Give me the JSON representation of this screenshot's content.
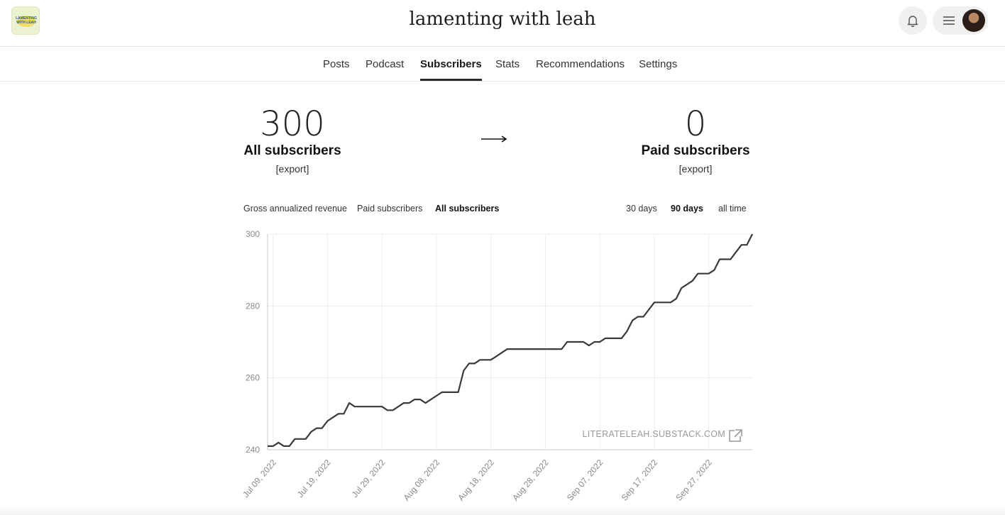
{
  "header": {
    "site_title": "lamenting with leah",
    "logo_text": "LAMENTING WITH LEAH"
  },
  "tabs": [
    {
      "label": "Posts",
      "active": false
    },
    {
      "label": "Podcast",
      "active": false
    },
    {
      "label": "Subscribers",
      "active": true
    },
    {
      "label": "Stats",
      "active": false
    },
    {
      "label": "Recommendations",
      "active": false
    },
    {
      "label": "Settings",
      "active": false
    }
  ],
  "summary": {
    "all": {
      "count": "300",
      "label": "All subscribers",
      "export": "[export]"
    },
    "paid": {
      "count": "0",
      "label": "Paid subscribers",
      "export": "[export]"
    }
  },
  "metric_toggles": [
    {
      "label": "Gross annualized revenue",
      "active": false
    },
    {
      "label": "Paid subscribers",
      "active": false
    },
    {
      "label": "All subscribers",
      "active": true
    }
  ],
  "range_toggles": [
    {
      "label": "30 days",
      "active": false
    },
    {
      "label": "90 days",
      "active": true
    },
    {
      "label": "all time",
      "active": false
    }
  ],
  "chart_link": "LITERATELEAH.SUBSTACK.COM",
  "colors": {
    "line": "#3a3a3a",
    "grid": "#ececec",
    "axis": "#c8c8c8",
    "tick": "#888888"
  },
  "chart_data": {
    "type": "line",
    "series": [
      {
        "values": [
          241,
          241,
          242,
          241,
          241,
          243,
          243,
          243,
          245,
          246,
          246,
          248,
          249,
          250,
          250,
          253,
          252,
          252,
          252,
          252,
          252,
          252,
          251,
          251,
          252,
          253,
          253,
          254,
          254,
          253,
          254,
          255,
          256,
          256,
          256,
          256,
          262,
          264,
          264,
          265,
          265,
          265,
          266,
          267,
          268,
          268,
          268,
          268,
          268,
          268,
          268,
          268,
          268,
          268,
          268,
          270,
          270,
          270,
          270,
          269,
          270,
          270,
          271,
          271,
          271,
          271,
          273,
          276,
          277,
          277,
          279,
          281,
          281,
          281,
          281,
          282,
          285,
          286,
          287,
          289,
          289,
          289,
          290,
          293,
          293,
          293,
          295,
          297,
          297,
          300
        ]
      }
    ],
    "x_start": "2022-07-08",
    "x_step_days": 1,
    "x_ticks": [
      "Jul 09, 2022",
      "Jul 19, 2022",
      "Jul 29, 2022",
      "Aug 08, 2022",
      "Aug 18, 2022",
      "Aug 28, 2022",
      "Sep 07, 2022",
      "Sep 17, 2022",
      "Sep 27, 2022"
    ],
    "y_ticks": [
      240,
      260,
      280,
      300
    ],
    "ylim": [
      240,
      300
    ],
    "grid": true
  }
}
